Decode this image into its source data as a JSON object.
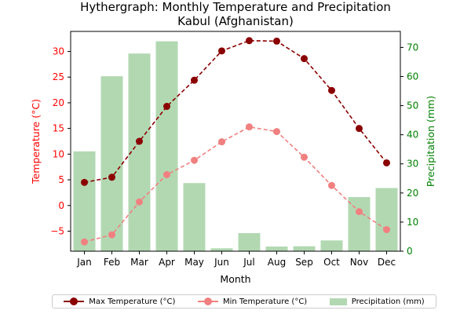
{
  "chart_data": {
    "type": "bar+line",
    "title": "Hythergraph: Monthly Temperature and Precipitation",
    "subtitle": "Kabul (Afghanistan)",
    "xlabel": "Month",
    "ylabel_left": "Temperature (°C)",
    "ylabel_right": "Precipitation (mm)",
    "categories": [
      "Jan",
      "Feb",
      "Mar",
      "Apr",
      "May",
      "Jun",
      "Jul",
      "Aug",
      "Sep",
      "Oct",
      "Nov",
      "Dec"
    ],
    "ylim_left": [
      -8.9,
      33.9
    ],
    "yticks_left": [
      -5,
      0,
      5,
      10,
      15,
      20,
      25,
      30
    ],
    "ylim_right": [
      0,
      75.5
    ],
    "yticks_right": [
      0,
      10,
      20,
      30,
      40,
      50,
      60,
      70
    ],
    "series": [
      {
        "name": "Max Temperature (°C)",
        "kind": "line",
        "axis": "left",
        "color": "#8b0000",
        "linestyle": "dashed",
        "values": [
          4.5,
          5.5,
          12.5,
          19.3,
          24.4,
          30.1,
          32.1,
          32.0,
          28.6,
          22.4,
          15.0,
          8.3
        ]
      },
      {
        "name": "Min Temperature (°C)",
        "kind": "line",
        "axis": "left",
        "color": "#f08080",
        "linestyle": "dashed",
        "values": [
          -7.1,
          -5.7,
          0.7,
          6.0,
          8.8,
          12.4,
          15.3,
          14.4,
          9.4,
          3.9,
          -1.2,
          -4.7
        ]
      },
      {
        "name": "Precipitation (mm)",
        "kind": "bar",
        "axis": "right",
        "color": "#b2d8b2",
        "values": [
          34.3,
          60.1,
          67.9,
          72.1,
          23.4,
          1.0,
          6.2,
          1.6,
          1.7,
          3.7,
          18.6,
          21.7
        ]
      }
    ],
    "legend_position": "bottom",
    "grid": false
  },
  "colors": {
    "left_axis": "#ff0000",
    "right_axis": "#008000"
  }
}
